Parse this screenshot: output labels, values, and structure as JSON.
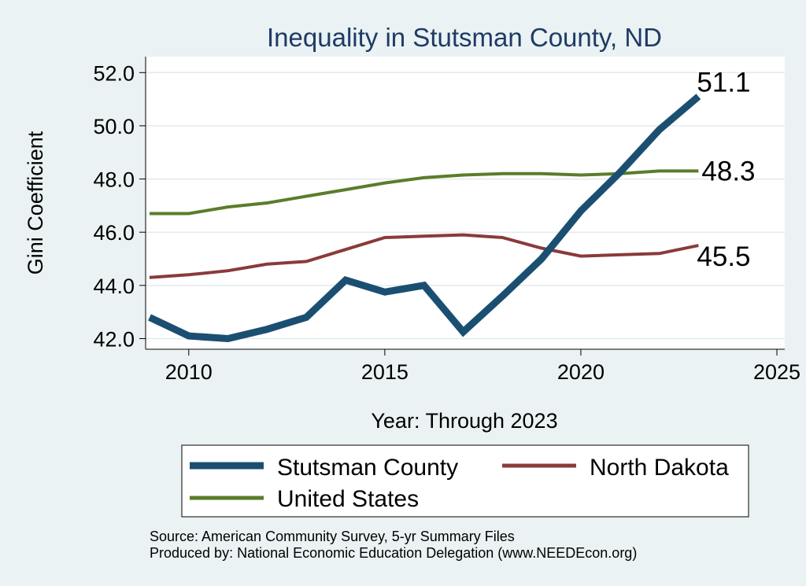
{
  "chart_data": {
    "type": "line",
    "title": "Inequality in Stutsman County, ND",
    "xlabel": "Year: Through 2023",
    "ylabel": "Gini Coefficient",
    "xlim": [
      2008.9,
      2025.2
    ],
    "ylim": [
      41.6,
      52.6
    ],
    "xticks": [
      2010,
      2015,
      2020,
      2025
    ],
    "yticks": [
      42.0,
      44.0,
      46.0,
      48.0,
      50.0,
      52.0
    ],
    "ytick_labels": [
      "42.0",
      "44.0",
      "46.0",
      "48.0",
      "50.0",
      "52.0"
    ],
    "grid": true,
    "legend_position": "bottom",
    "x": [
      2009,
      2010,
      2011,
      2012,
      2013,
      2014,
      2015,
      2016,
      2017,
      2018,
      2019,
      2020,
      2021,
      2022,
      2023
    ],
    "series": [
      {
        "name": "Stutsman County",
        "color": "#1b4f72",
        "values": [
          42.8,
          42.1,
          42.0,
          42.35,
          42.8,
          44.2,
          43.75,
          44.0,
          42.25,
          43.6,
          45.0,
          46.8,
          48.25,
          49.85,
          51.1
        ],
        "end_label": "51.1"
      },
      {
        "name": "North Dakota",
        "color": "#8b3a3a",
        "values": [
          44.3,
          44.4,
          44.55,
          44.8,
          44.9,
          45.35,
          45.8,
          45.85,
          45.9,
          45.8,
          45.4,
          45.1,
          45.15,
          45.2,
          45.5
        ],
        "end_label": "45.5"
      },
      {
        "name": "United States",
        "color": "#5a7d2a",
        "values": [
          46.7,
          46.7,
          46.95,
          47.1,
          47.35,
          47.6,
          47.85,
          48.05,
          48.15,
          48.2,
          48.2,
          48.15,
          48.2,
          48.3,
          48.3
        ],
        "end_label": "48.3"
      }
    ],
    "legend": [
      "Stutsman County",
      "North Dakota",
      "United States"
    ],
    "notes": [
      "Source: American Community Survey, 5-yr Summary Files",
      "Produced by: National Economic Education Delegation (www.NEEDEcon.org)"
    ]
  }
}
